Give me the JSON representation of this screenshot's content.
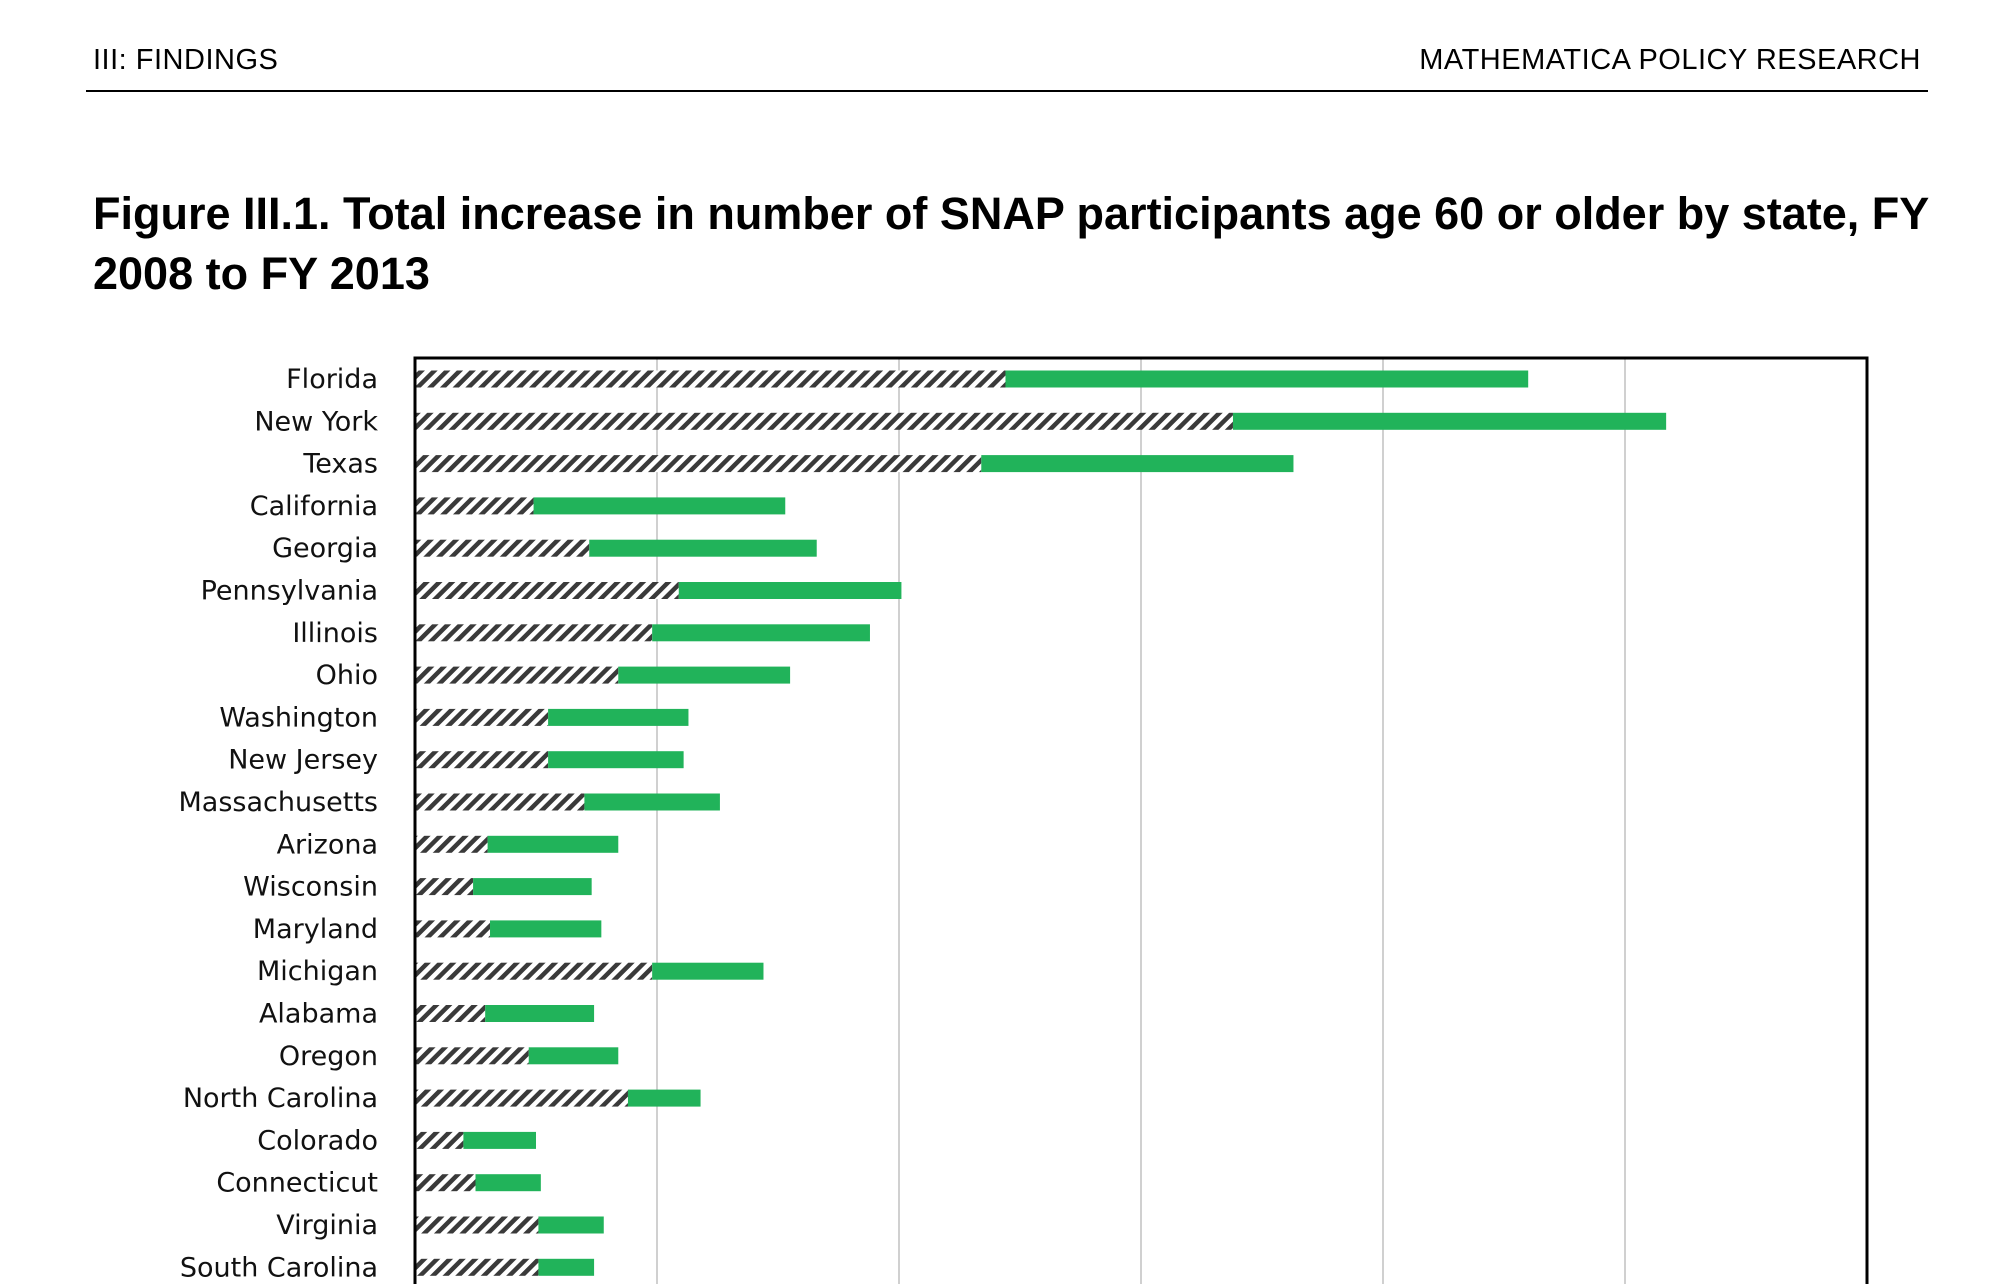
{
  "header": {
    "left": "III: FINDINGS",
    "right": "MATHEMATICA POLICY RESEARCH"
  },
  "figure": {
    "title": "Figure III.1. Total increase in number of SNAP participants age 60 or older by state, FY 2008 to FY 2013"
  },
  "chart_data": {
    "type": "bar",
    "orientation": "horizontal",
    "stacked": true,
    "categories": [
      "Florida",
      "New York",
      "Texas",
      "California",
      "Georgia",
      "Pennsylvania",
      "Illinois",
      "Ohio",
      "Washington",
      "New Jersey",
      "Massachusetts",
      "Arizona",
      "Wisconsin",
      "Maryland",
      "Michigan",
      "Alabama",
      "Oregon",
      "North Carolina",
      "Colorado",
      "Connecticut",
      "Virginia",
      "South Carolina"
    ],
    "series": [
      {
        "pattern": "hatched",
        "color": "#3a3a3a",
        "values": [
          244,
          338,
          234,
          49,
          72,
          109,
          98,
          84,
          55,
          55,
          70,
          30,
          24,
          31,
          98,
          29,
          47,
          88,
          20,
          25,
          51,
          51
        ]
      },
      {
        "pattern": "solid",
        "color": "#21b35a",
        "values": [
          216,
          179,
          129,
          104,
          94,
          92,
          90,
          71,
          58,
          56,
          56,
          54,
          49,
          46,
          46,
          45,
          37,
          30,
          30,
          27,
          27,
          23
        ]
      }
    ],
    "xlim": [
      0,
      600
    ],
    "grid": true,
    "gridlines_at": [
      100,
      200,
      300,
      400,
      500
    ],
    "legend": "none"
  }
}
